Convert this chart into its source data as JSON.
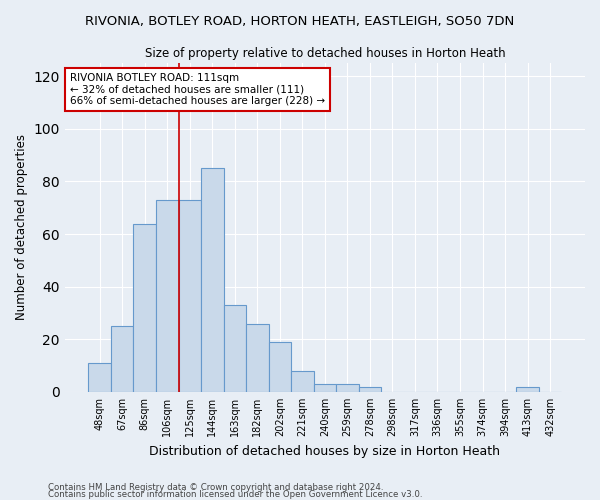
{
  "title1": "RIVONIA, BOTLEY ROAD, HORTON HEATH, EASTLEIGH, SO50 7DN",
  "title2": "Size of property relative to detached houses in Horton Heath",
  "xlabel": "Distribution of detached houses by size in Horton Heath",
  "ylabel": "Number of detached properties",
  "footer1": "Contains HM Land Registry data © Crown copyright and database right 2024.",
  "footer2": "Contains public sector information licensed under the Open Government Licence v3.0.",
  "bar_labels": [
    "48sqm",
    "67sqm",
    "86sqm",
    "106sqm",
    "125sqm",
    "144sqm",
    "163sqm",
    "182sqm",
    "202sqm",
    "221sqm",
    "240sqm",
    "259sqm",
    "278sqm",
    "298sqm",
    "317sqm",
    "336sqm",
    "355sqm",
    "374sqm",
    "394sqm",
    "413sqm",
    "432sqm"
  ],
  "bar_values": [
    11,
    25,
    64,
    73,
    73,
    85,
    33,
    26,
    19,
    8,
    3,
    3,
    2,
    0,
    0,
    0,
    0,
    0,
    0,
    2,
    0
  ],
  "bar_color": "#c9d9ea",
  "bar_edge_color": "#6699cc",
  "background_color": "#e8eef5",
  "grid_color": "#ffffff",
  "vline_x": 3.5,
  "vline_color": "#cc0000",
  "annotation_text": "RIVONIA BOTLEY ROAD: 111sqm\n← 32% of detached houses are smaller (111)\n66% of semi-detached houses are larger (228) →",
  "annotation_box_color": "#ffffff",
  "annotation_border_color": "#cc0000",
  "ylim": [
    0,
    125
  ],
  "yticks": [
    0,
    20,
    40,
    60,
    80,
    100,
    120
  ],
  "figsize": [
    6.0,
    5.0
  ],
  "dpi": 100
}
